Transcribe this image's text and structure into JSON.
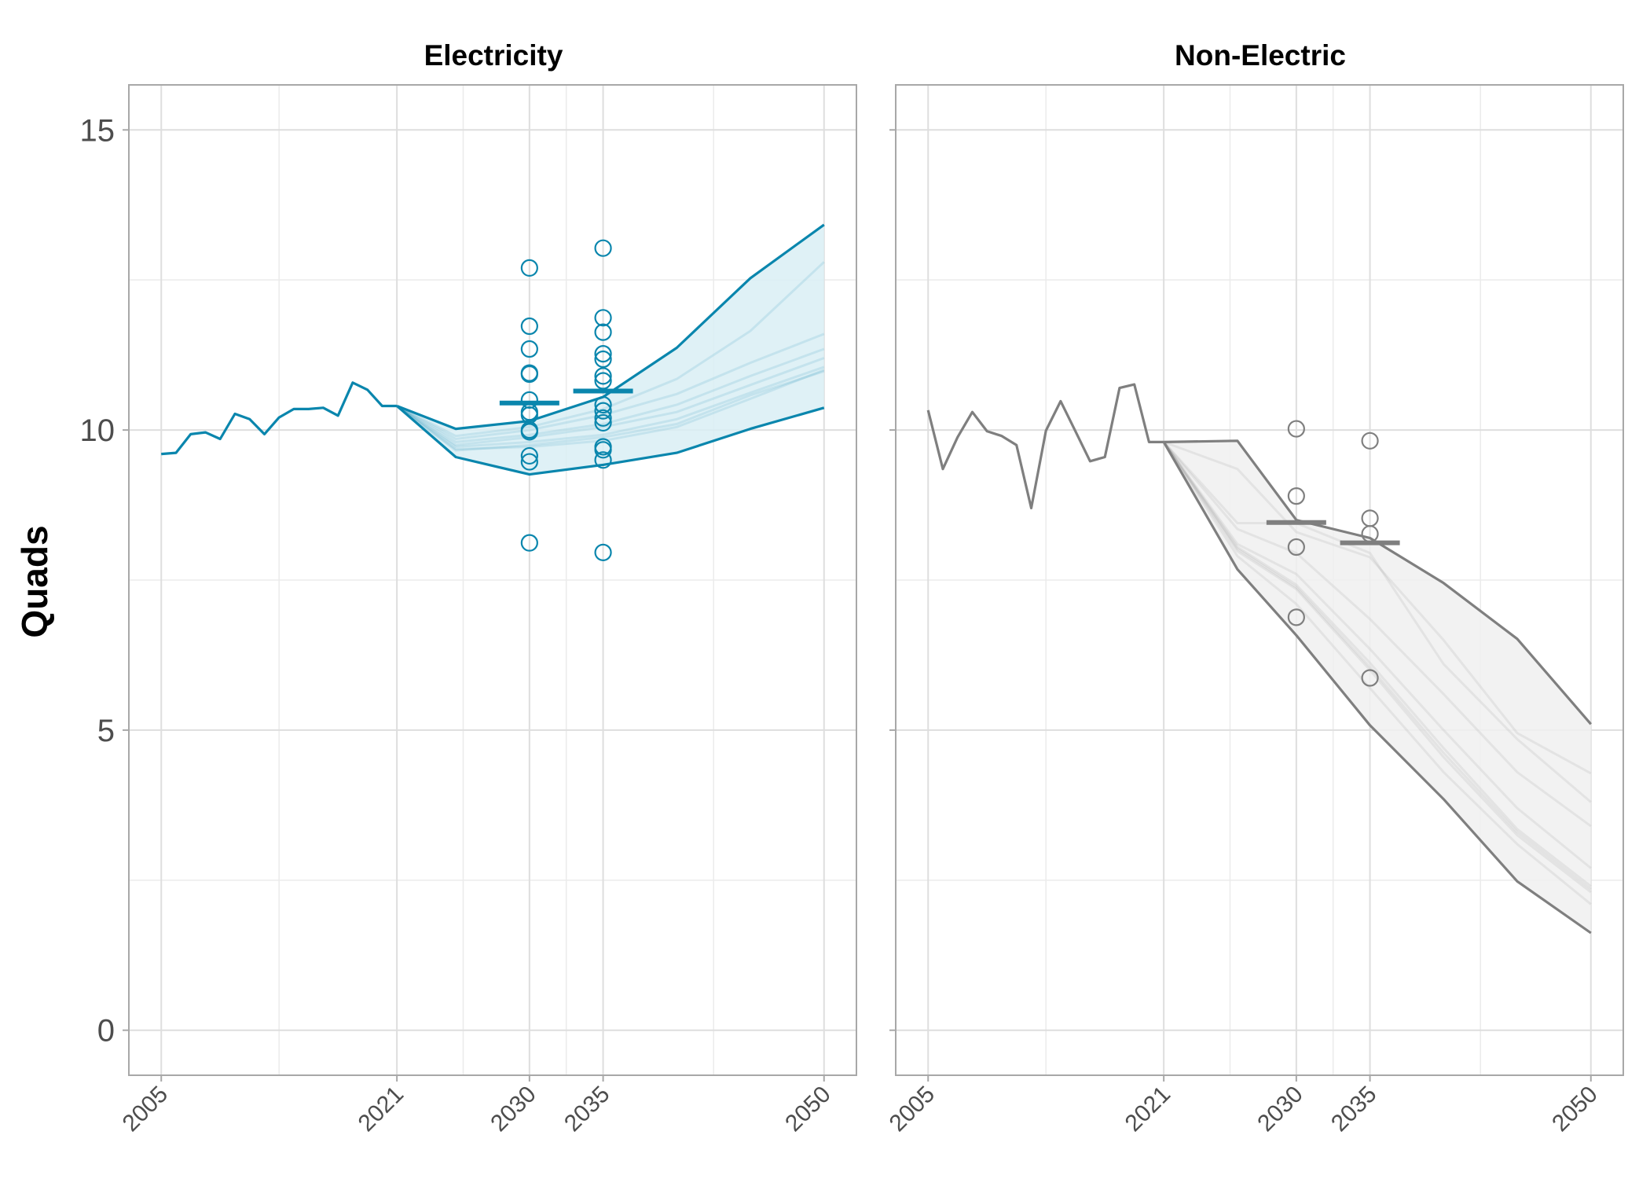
{
  "chart_data": [
    {
      "type": "line",
      "title": "Electricity",
      "ylabel": "Quads",
      "xlabel": "",
      "x_ticks": [
        2005,
        2021,
        2030,
        2035,
        2050
      ],
      "y_ticks": [
        0,
        5,
        10,
        15
      ],
      "xlim": [
        2002.8,
        2052.2
      ],
      "ylim": [
        -0.75,
        15.75
      ],
      "grid": true,
      "color": "#0a86ad",
      "fill_color": "#d9eef5",
      "historical": {
        "x": [
          2005,
          2006,
          2007,
          2008,
          2009,
          2010,
          2011,
          2012,
          2013,
          2014,
          2015,
          2016,
          2017,
          2018,
          2019,
          2020,
          2021
        ],
        "y": [
          9.6,
          9.62,
          9.93,
          9.96,
          9.85,
          10.27,
          10.18,
          9.93,
          10.21,
          10.35,
          10.35,
          10.37,
          10.24,
          10.79,
          10.67,
          10.4,
          10.4
        ]
      },
      "projection_upper": {
        "x": [
          2021,
          2025,
          2030,
          2035,
          2040,
          2045,
          2050
        ],
        "y": [
          10.4,
          10.02,
          10.15,
          10.55,
          11.37,
          12.53,
          13.42
        ]
      },
      "projection_lower": {
        "x": [
          2021,
          2025,
          2030,
          2035,
          2040,
          2045,
          2050
        ],
        "y": [
          10.4,
          9.55,
          9.26,
          9.42,
          9.62,
          10.02,
          10.37
        ]
      },
      "scenario_lines": [
        {
          "x": [
            2021,
            2025,
            2030,
            2035,
            2040,
            2045,
            2050
          ],
          "y": [
            10.4,
            9.68,
            9.72,
            9.82,
            10.05,
            10.52,
            11.0
          ]
        },
        {
          "x": [
            2021,
            2025,
            2030,
            2035,
            2040,
            2045,
            2050
          ],
          "y": [
            10.4,
            9.72,
            9.8,
            9.92,
            10.18,
            10.62,
            11.05
          ]
        },
        {
          "x": [
            2021,
            2025,
            2030,
            2035,
            2040,
            2045,
            2050
          ],
          "y": [
            10.4,
            9.66,
            9.75,
            9.88,
            10.1,
            10.58,
            10.98
          ]
        },
        {
          "x": [
            2021,
            2025,
            2030,
            2035,
            2040,
            2045,
            2050
          ],
          "y": [
            10.4,
            9.8,
            9.92,
            10.1,
            10.42,
            10.9,
            11.35
          ]
        },
        {
          "x": [
            2021,
            2025,
            2030,
            2035,
            2040,
            2045,
            2050
          ],
          "y": [
            10.4,
            9.85,
            10.0,
            10.25,
            10.6,
            11.12,
            11.6
          ]
        },
        {
          "x": [
            2021,
            2025,
            2030,
            2035,
            2040,
            2045,
            2050
          ],
          "y": [
            10.4,
            9.9,
            10.05,
            10.35,
            10.85,
            11.65,
            12.8
          ]
        },
        {
          "x": [
            2021,
            2025,
            2030,
            2035,
            2040,
            2045,
            2050
          ],
          "y": [
            10.4,
            9.75,
            9.88,
            10.05,
            10.3,
            10.75,
            11.2
          ]
        }
      ],
      "points": [
        {
          "x": 2030,
          "values": [
            12.7,
            11.73,
            11.35,
            10.95,
            10.93,
            10.5,
            10.3,
            10.25,
            10.0,
            9.97,
            9.57,
            9.47,
            8.12
          ]
        },
        {
          "x": 2035,
          "values": [
            13.03,
            11.87,
            11.63,
            11.27,
            11.18,
            10.9,
            10.82,
            10.42,
            10.32,
            10.2,
            10.12,
            9.72,
            9.67,
            9.5,
            7.96
          ]
        }
      ],
      "means": [
        {
          "x": 2030,
          "y": 10.45
        },
        {
          "x": 2035,
          "y": 10.65
        }
      ]
    },
    {
      "type": "line",
      "title": "Non-Electric",
      "xlabel": "",
      "x_ticks": [
        2005,
        2021,
        2030,
        2035,
        2050
      ],
      "y_ticks": [
        0,
        5,
        10,
        15
      ],
      "xlim": [
        2002.8,
        2052.2
      ],
      "ylim": [
        -0.75,
        15.75
      ],
      "grid": true,
      "color": "#7f7f7f",
      "fill_color": "#f0f0f0",
      "historical": {
        "x": [
          2005,
          2006,
          2007,
          2008,
          2009,
          2010,
          2011,
          2012,
          2013,
          2014,
          2015,
          2016,
          2017,
          2018,
          2019,
          2020,
          2021
        ],
        "y": [
          10.33,
          9.35,
          9.88,
          10.3,
          9.98,
          9.9,
          9.75,
          8.7,
          9.99,
          10.48,
          9.98,
          9.48,
          9.55,
          10.7,
          10.76,
          9.8,
          9.8
        ]
      },
      "projection_upper": {
        "x": [
          2021,
          2026,
          2030,
          2035,
          2040,
          2045,
          2050
        ],
        "y": [
          9.8,
          9.82,
          8.5,
          8.2,
          7.45,
          6.52,
          5.1
        ]
      },
      "projection_lower": {
        "x": [
          2021,
          2026,
          2030,
          2035,
          2040,
          2045,
          2050
        ],
        "y": [
          9.8,
          7.68,
          6.58,
          5.08,
          3.85,
          2.48,
          1.62
        ]
      },
      "scenario_lines": [
        {
          "x": [
            2021,
            2026,
            2030,
            2035,
            2040,
            2045,
            2050
          ],
          "y": [
            9.8,
            8.02,
            7.38,
            6.05,
            4.62,
            3.3,
            2.35
          ]
        },
        {
          "x": [
            2021,
            2026,
            2030,
            2035,
            2040,
            2045,
            2050
          ],
          "y": [
            9.8,
            8.05,
            7.42,
            6.12,
            4.7,
            3.35,
            2.4
          ]
        },
        {
          "x": [
            2021,
            2026,
            2030,
            2035,
            2040,
            2045,
            2050
          ],
          "y": [
            9.8,
            7.98,
            7.35,
            6.0,
            4.55,
            3.25,
            2.3
          ]
        },
        {
          "x": [
            2021,
            2026,
            2030,
            2035,
            2040,
            2045,
            2050
          ],
          "y": [
            9.8,
            7.9,
            7.1,
            5.7,
            4.3,
            3.1,
            2.1
          ]
        },
        {
          "x": [
            2021,
            2026,
            2030,
            2035,
            2040,
            2045,
            2050
          ],
          "y": [
            9.8,
            8.35,
            7.95,
            6.85,
            5.6,
            4.3,
            3.4
          ]
        },
        {
          "x": [
            2021,
            2026,
            2030,
            2035,
            2040,
            2045,
            2050
          ],
          "y": [
            9.8,
            9.35,
            8.3,
            7.88,
            6.5,
            4.95,
            4.28
          ]
        },
        {
          "x": [
            2021,
            2026,
            2030,
            2035,
            2040,
            2045,
            2050
          ],
          "y": [
            9.8,
            8.45,
            8.45,
            7.95,
            6.1,
            4.85,
            3.8
          ]
        },
        {
          "x": [
            2021,
            2026,
            2030,
            2035,
            2040,
            2045,
            2050
          ],
          "y": [
            9.8,
            8.1,
            7.6,
            6.35,
            5.0,
            3.7,
            2.7
          ]
        }
      ],
      "points": [
        {
          "x": 2030,
          "values": [
            10.02,
            8.9,
            8.05,
            6.88
          ]
        },
        {
          "x": 2035,
          "values": [
            9.82,
            8.53,
            8.27,
            5.87
          ]
        }
      ],
      "means": [
        {
          "x": 2030,
          "y": 8.46
        },
        {
          "x": 2035,
          "y": 8.12
        }
      ]
    }
  ]
}
